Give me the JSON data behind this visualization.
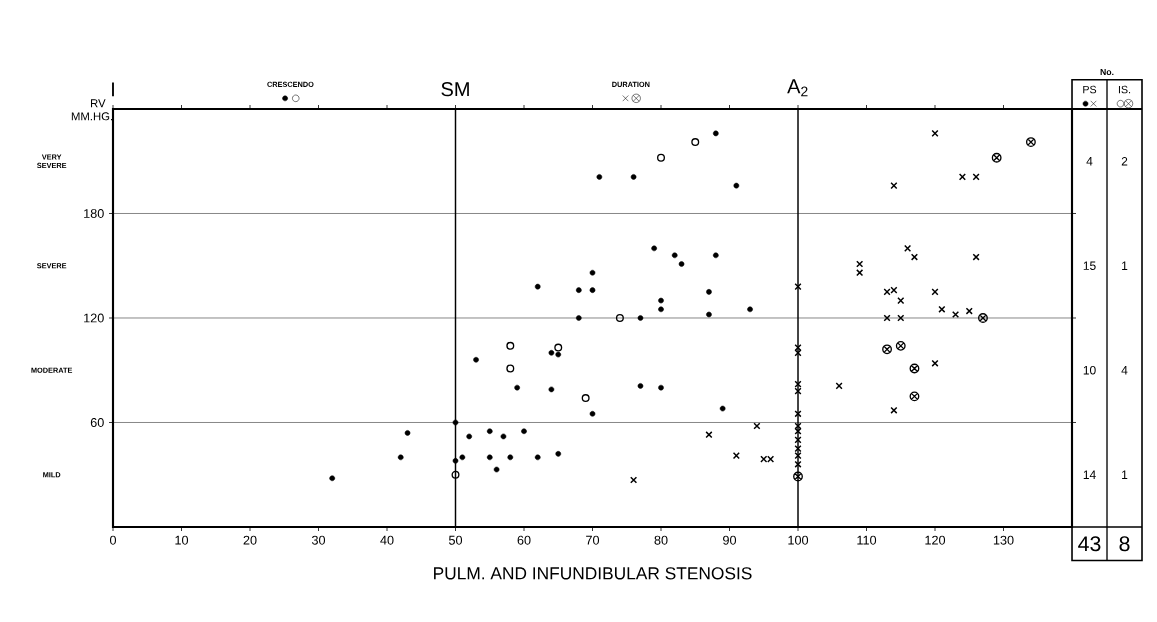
{
  "chart_data": [
    {
      "type": "scatter",
      "xlabel": "PULM. AND INFUNDIBULAR STENOSIS",
      "ylabel": "RV MM.HG.",
      "xlim": [
        0,
        140
      ],
      "ylim": [
        0,
        240
      ],
      "xticks": [
        0,
        10,
        20,
        30,
        40,
        50,
        60,
        70,
        80,
        90,
        100,
        110,
        120,
        130
      ],
      "yticks": [
        60,
        120,
        180
      ],
      "grid": "y",
      "ref_lines": [
        {
          "axis": "x",
          "value": 0,
          "label": "I"
        },
        {
          "axis": "x",
          "value": 50,
          "label": "SM"
        },
        {
          "axis": "x",
          "value": 100,
          "label": "A$_{2}$"
        }
      ],
      "annotations": [
        "CRESCENDO",
        "DURATION",
        "VERY SEVERE",
        "SEVERE",
        "MODERATE",
        "MILD"
      ],
      "series": [
        {
          "color": "#000000",
          "marker": "circle",
          "x": [
            88,
            71,
            76,
            91,
            79,
            82,
            83,
            88,
            70,
            62,
            68,
            70,
            87,
            80,
            80,
            93,
            87,
            68,
            77,
            53,
            64,
            65,
            59,
            64,
            77,
            80,
            89,
            70,
            50,
            43,
            52,
            55,
            57,
            60,
            42,
            50,
            51,
            55,
            56,
            58,
            62,
            65,
            32
          ],
          "values": [
            226,
            201,
            201,
            196,
            160,
            156,
            151,
            156,
            146,
            138,
            136,
            136,
            135,
            130,
            125,
            125,
            122,
            120,
            120,
            96,
            100,
            99,
            80,
            79,
            81,
            80,
            68,
            65,
            60,
            54,
            52,
            55,
            52,
            55,
            40,
            38,
            40,
            40,
            33,
            40,
            40,
            42,
            28
          ]
        },
        {
          "color": "#000000",
          "marker": "cross",
          "x": [
            76,
            87,
            94,
            91,
            95,
            96,
            100,
            100,
            100,
            100,
            100,
            100,
            100,
            100,
            100,
            100,
            100,
            100,
            120,
            114,
            124,
            126,
            116,
            117,
            126,
            109,
            109,
            113,
            114,
            115,
            120,
            121,
            123,
            125,
            113,
            115,
            120,
            106,
            114
          ],
          "values": [
            27,
            53,
            58,
            41,
            39,
            39,
            138,
            103,
            100,
            82,
            78,
            65,
            58,
            55,
            50,
            45,
            41,
            36,
            226,
            196,
            201,
            201,
            160,
            155,
            155,
            151,
            146,
            135,
            136,
            130,
            135,
            125,
            122,
            124,
            120,
            120,
            94,
            81,
            67
          ]
        },
        {
          "color": "#000000",
          "marker": "circle-open",
          "x": [
            85,
            80,
            74,
            58,
            65,
            58,
            69,
            50
          ],
          "values": [
            221,
            212,
            120,
            104,
            103,
            91,
            74,
            30
          ]
        },
        {
          "color": "#000000",
          "x": [
            134,
            129,
            127,
            113,
            115,
            117,
            117,
            100
          ],
          "values": [
            221,
            212,
            120,
            102,
            104,
            91,
            75,
            29
          ]
        }
      ]
    },
    {
      "type": "other",
      "title": "No.",
      "annotations": [
        "PS",
        "IS.",
        "4",
        "2",
        "15",
        "1",
        "10",
        "4",
        "14",
        "1",
        "43",
        "8"
      ]
    }
  ]
}
